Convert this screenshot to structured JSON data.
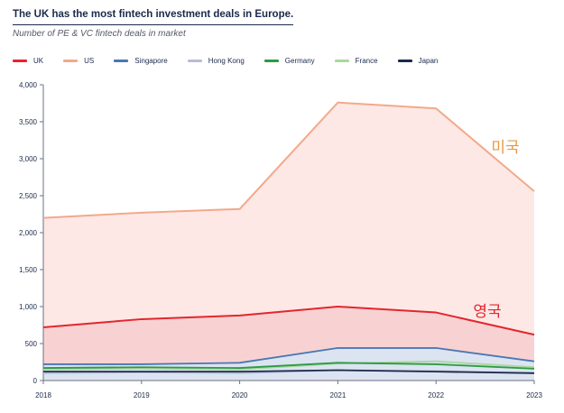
{
  "chart_data": {
    "type": "area",
    "title": "The UK has the most fintech investment deals in Europe.",
    "subtitle": "Number of PE & VC fintech deals in market",
    "x": [
      "2018",
      "2019",
      "2020",
      "2021",
      "2022",
      "2023"
    ],
    "ylim": [
      0,
      4000
    ],
    "yticks": [
      "0",
      "500",
      "1,000",
      "1,500",
      "2,000",
      "2,500",
      "3,000",
      "3,500",
      "4,000"
    ],
    "ytick_values": [
      0,
      500,
      1000,
      1500,
      2000,
      2500,
      3000,
      3500,
      4000
    ],
    "grid": false,
    "legend_position": "top-left",
    "series": [
      {
        "name": "UK",
        "values": [
          720,
          830,
          880,
          1000,
          920,
          620
        ],
        "color": "#e3262e",
        "fill": "#f8d2d2"
      },
      {
        "name": "US",
        "values": [
          2200,
          2270,
          2320,
          3760,
          3680,
          2560
        ],
        "color": "#f2a98a",
        "fill": "#fde8e6"
      },
      {
        "name": "Singapore",
        "values": [
          220,
          220,
          240,
          440,
          440,
          260
        ],
        "color": "#4a77b4",
        "fill": "#dbe4f0"
      },
      {
        "name": "Hong Kong",
        "values": [
          100,
          110,
          100,
          140,
          130,
          100
        ],
        "color": "#b8bcd8",
        "fill": ""
      },
      {
        "name": "Germany",
        "values": [
          170,
          180,
          170,
          240,
          220,
          160
        ],
        "color": "#2e9a44",
        "fill": ""
      },
      {
        "name": "France",
        "values": [
          150,
          160,
          150,
          230,
          260,
          180
        ],
        "color": "#a9d89f",
        "fill": ""
      },
      {
        "name": "Japan",
        "values": [
          120,
          120,
          120,
          140,
          120,
          100
        ],
        "color": "#1b2a4a",
        "fill": ""
      }
    ],
    "annotations": [
      {
        "text": "미국",
        "color": "#e69a44"
      },
      {
        "text": "영국",
        "color": "#e3262e"
      }
    ]
  }
}
